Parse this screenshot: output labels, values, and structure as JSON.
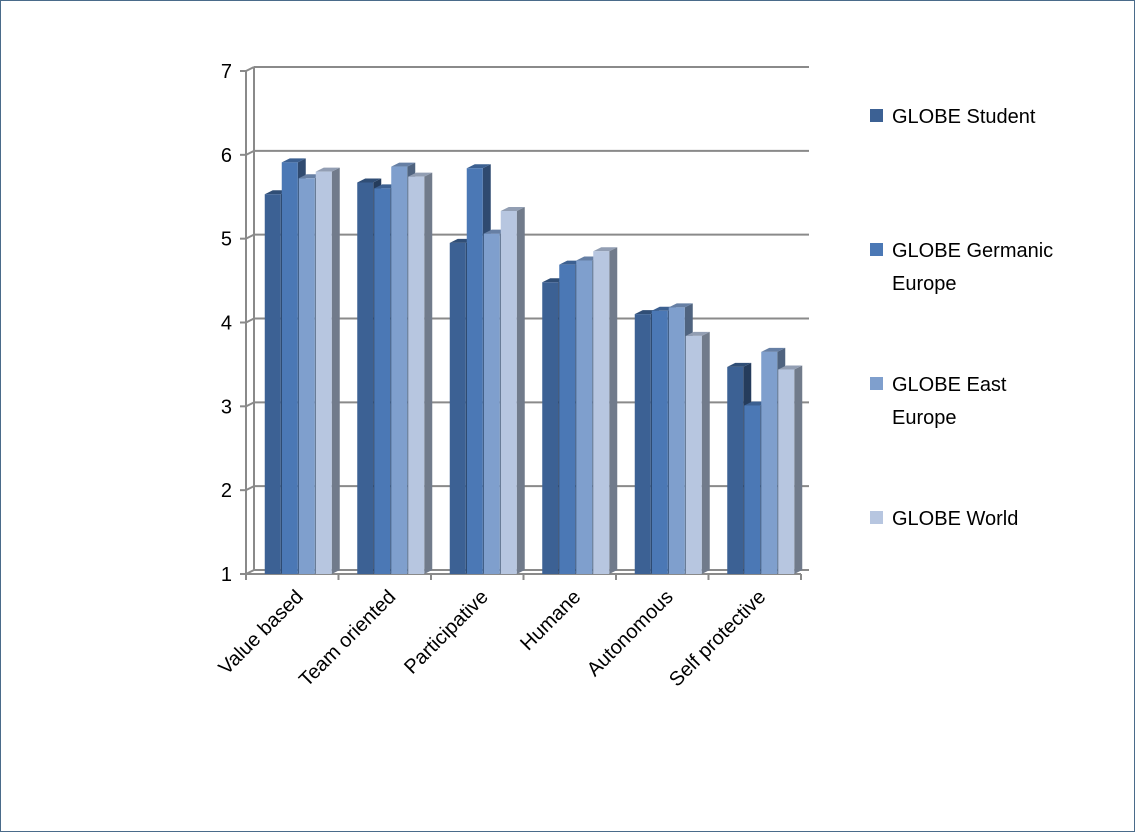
{
  "chart_data": {
    "type": "bar",
    "title": "",
    "xlabel": "",
    "ylabel": "",
    "ylim": [
      1,
      7
    ],
    "yticks": [
      1,
      2,
      3,
      4,
      5,
      6,
      7
    ],
    "grid": true,
    "legend_position": "right",
    "categories": [
      "Value based",
      "Team oriented",
      "Participative",
      "Humane",
      "Autonomous",
      "Self protective"
    ],
    "series": [
      {
        "name": "GLOBE Student",
        "color": "#3c6194",
        "values": [
          5.53,
          5.67,
          4.95,
          4.48,
          4.1,
          3.47
        ]
      },
      {
        "name": "GLOBE Germanic Europe",
        "color": "#4b78b5",
        "values": [
          5.91,
          5.6,
          5.84,
          4.69,
          4.14,
          3.01
        ]
      },
      {
        "name": "GLOBE East Europe",
        "color": "#7f9fcd",
        "values": [
          5.72,
          5.86,
          5.06,
          4.74,
          4.18,
          3.65
        ]
      },
      {
        "name": "GLOBE World",
        "color": "#b7c6e0",
        "values": [
          5.8,
          5.74,
          5.33,
          4.85,
          3.84,
          3.44
        ]
      }
    ]
  }
}
